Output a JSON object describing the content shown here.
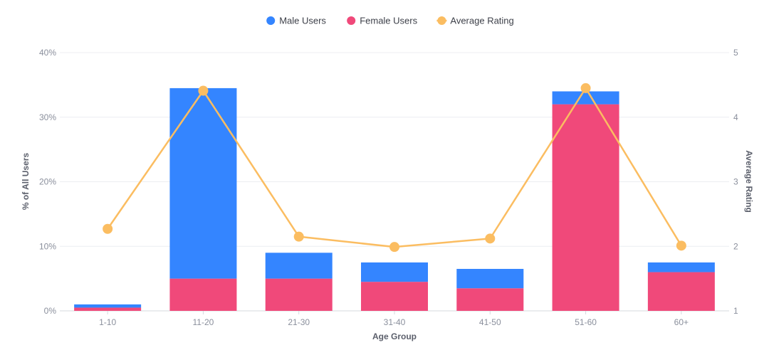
{
  "chart_data": {
    "type": "bar",
    "stacked": true,
    "categories": [
      "1-10",
      "11-20",
      "21-30",
      "31-40",
      "41-50",
      "51-60",
      "60+"
    ],
    "series": [
      {
        "name": "Female Users",
        "kind": "bar",
        "axis": "left",
        "color": "#f0497a",
        "values": [
          0.5,
          5,
          5,
          4.5,
          3.5,
          32,
          6
        ]
      },
      {
        "name": "Male Users",
        "kind": "bar",
        "axis": "left",
        "color": "#3485ff",
        "values": [
          0.5,
          29.5,
          4,
          3,
          3,
          2,
          1.5
        ]
      },
      {
        "name": "Average Rating",
        "kind": "line",
        "axis": "right",
        "color": "#fbbd61",
        "values": [
          2.27,
          4.41,
          2.15,
          1.99,
          2.12,
          4.45,
          2.01
        ]
      }
    ],
    "legend": {
      "placement": "top-center",
      "items": [
        {
          "name": "Male Users",
          "color": "#3485ff"
        },
        {
          "name": "Female Users",
          "color": "#f0497a"
        },
        {
          "name": "Average Rating",
          "color": "#fbbd61"
        }
      ]
    },
    "xlabel": "Age Group",
    "ylabel": "% of All Users",
    "y2label": "Average Rating",
    "ylim": [
      0,
      40
    ],
    "y_ticks": [
      "0%",
      "10%",
      "20%",
      "30%",
      "40%"
    ],
    "y2lim": [
      1,
      5
    ],
    "y2_ticks": [
      "1",
      "2",
      "3",
      "4",
      "5"
    ],
    "grid": true
  }
}
